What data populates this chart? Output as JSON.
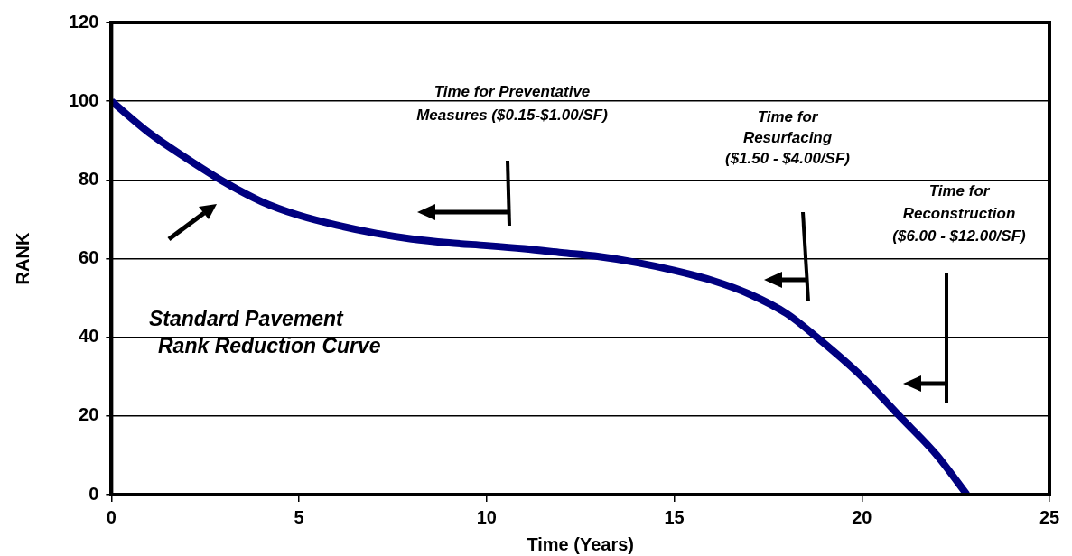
{
  "chart_data": {
    "type": "line",
    "xlabel": "Time (Years)",
    "ylabel": "RANK",
    "x": [
      0,
      1,
      2,
      3,
      4,
      5,
      6,
      7,
      8,
      9,
      10,
      11,
      12,
      13,
      14,
      15,
      16,
      17,
      18,
      18.8,
      20,
      21,
      22,
      22.8
    ],
    "series": [
      {
        "color": "#000080",
        "values": [
          100,
          92,
          85.5,
          79.5,
          74.5,
          71,
          68.5,
          66.5,
          65,
          64,
          63.3,
          62.5,
          61.5,
          60.5,
          59,
          57,
          54.5,
          51,
          46,
          40,
          30,
          20,
          10,
          0
        ]
      }
    ],
    "xlim": [
      0,
      25
    ],
    "xticks": [
      0,
      5,
      10,
      15,
      20,
      25
    ],
    "ylim": [
      0,
      120
    ],
    "yticks": [
      0,
      20,
      40,
      60,
      80,
      100,
      120
    ],
    "grid": "y",
    "legend": false,
    "marker": "none",
    "line_style": "solid",
    "annotations": [
      "Time for Preventative\nMeasures ($0.15-$1.00/SF)",
      "Time for\nResurfacing\n($1.50 - $4.00/SF)",
      "Time for\nReconstruction\n($6.00 - $12.00/SF)",
      "Standard Pavement\nRank Reduction Curve"
    ]
  }
}
